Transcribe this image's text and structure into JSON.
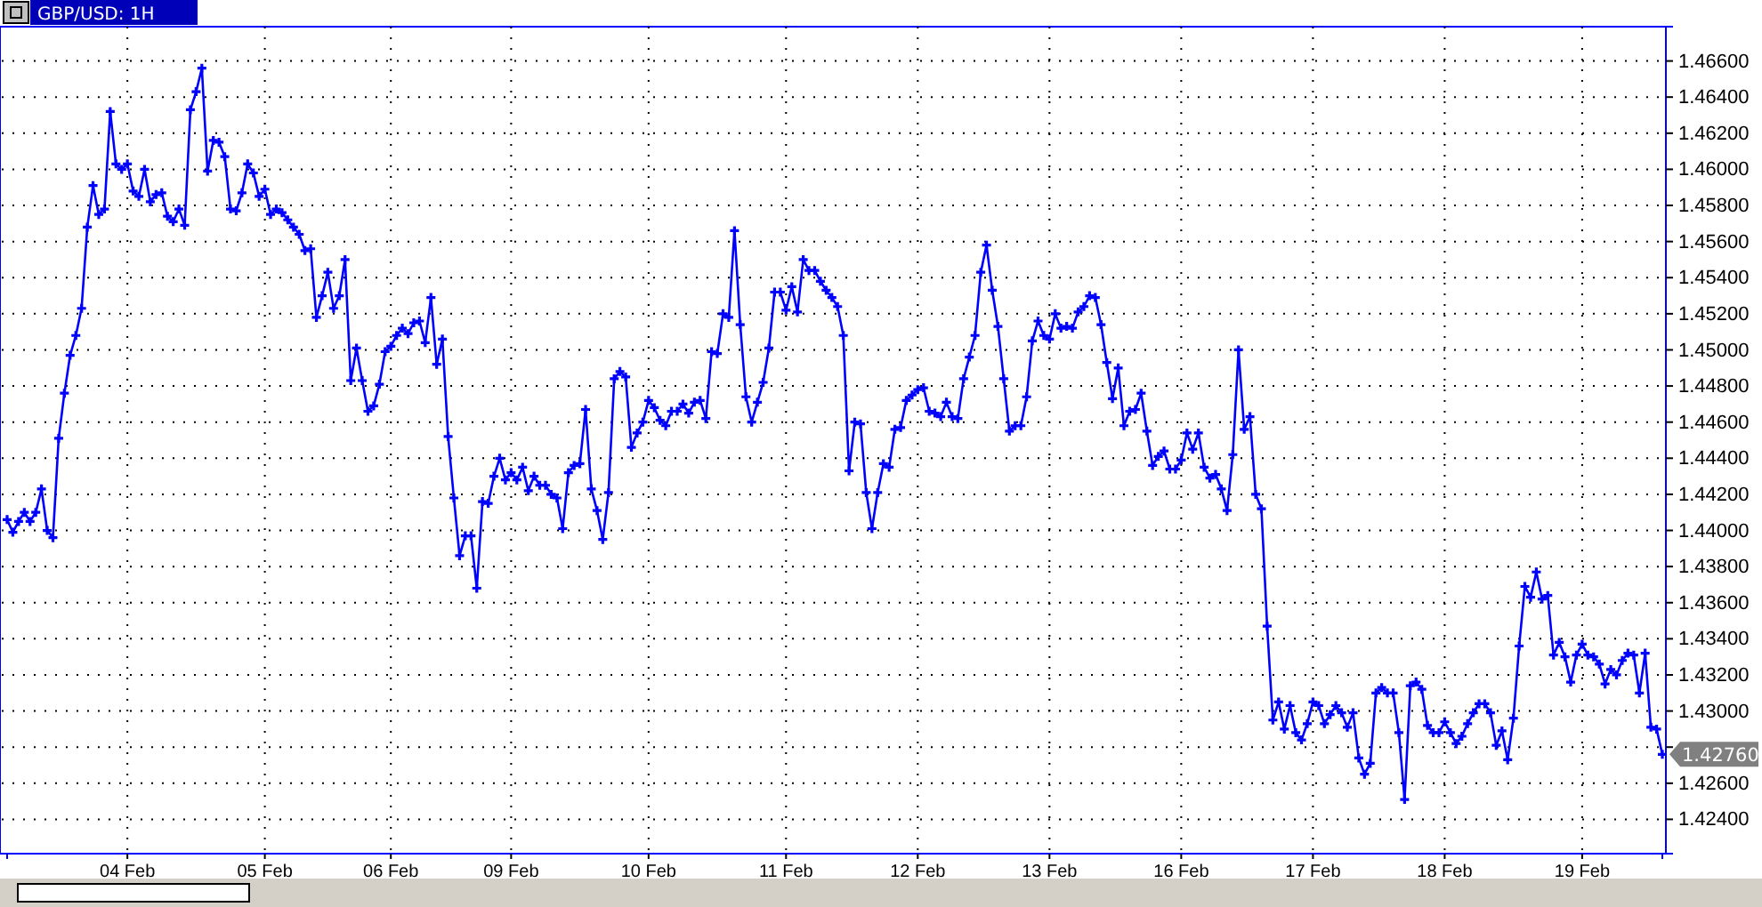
{
  "chart_data": {
    "type": "line",
    "title": "GBP/USD: 1H",
    "marker": "cross",
    "line_style": "solid",
    "grid": true,
    "ylim": [
      1.4221,
      1.4679
    ],
    "categories": [
      null,
      null,
      null,
      null,
      null,
      null,
      null,
      null,
      null,
      null,
      null,
      null,
      null,
      null,
      null,
      null,
      null,
      null,
      null,
      null,
      null,
      "04 Feb",
      null,
      null,
      null,
      null,
      null,
      null,
      null,
      null,
      null,
      null,
      null,
      null,
      null,
      null,
      null,
      null,
      null,
      null,
      null,
      null,
      null,
      null,
      null,
      "05 Feb",
      null,
      null,
      null,
      null,
      null,
      null,
      null,
      null,
      null,
      null,
      null,
      null,
      null,
      null,
      null,
      null,
      null,
      null,
      null,
      null,
      null,
      "06 Feb",
      null,
      null,
      null,
      null,
      null,
      null,
      null,
      null,
      null,
      null,
      null,
      null,
      null,
      null,
      null,
      null,
      null,
      null,
      null,
      null,
      "09 Feb",
      null,
      null,
      null,
      null,
      null,
      null,
      null,
      null,
      null,
      null,
      null,
      null,
      null,
      null,
      null,
      null,
      null,
      null,
      null,
      null,
      null,
      null,
      null,
      "10 Feb",
      null,
      null,
      null,
      null,
      null,
      null,
      null,
      null,
      null,
      null,
      null,
      null,
      null,
      null,
      null,
      null,
      null,
      null,
      null,
      null,
      null,
      null,
      null,
      "11 Feb",
      null,
      null,
      null,
      null,
      null,
      null,
      null,
      null,
      null,
      null,
      null,
      null,
      null,
      null,
      null,
      null,
      null,
      null,
      null,
      null,
      null,
      null,
      "12 Feb",
      null,
      null,
      null,
      null,
      null,
      null,
      null,
      null,
      null,
      null,
      null,
      null,
      null,
      null,
      null,
      null,
      null,
      null,
      null,
      null,
      null,
      null,
      "13 Feb",
      null,
      null,
      null,
      null,
      null,
      null,
      null,
      null,
      null,
      null,
      null,
      null,
      null,
      null,
      null,
      null,
      null,
      null,
      null,
      null,
      null,
      null,
      "16 Feb",
      null,
      null,
      null,
      null,
      null,
      null,
      null,
      null,
      null,
      null,
      null,
      null,
      null,
      null,
      null,
      null,
      null,
      null,
      null,
      null,
      null,
      null,
      "17 Feb",
      null,
      null,
      null,
      null,
      null,
      null,
      null,
      null,
      null,
      null,
      null,
      null,
      null,
      null,
      null,
      null,
      null,
      null,
      null,
      null,
      null,
      null,
      "18 Feb",
      null,
      null,
      null,
      null,
      null,
      null,
      null,
      null,
      null,
      null,
      null,
      null,
      null,
      null,
      null,
      null,
      null,
      null,
      null,
      null,
      null,
      null,
      null,
      "19 Feb",
      null,
      null,
      null,
      null,
      null,
      null,
      null,
      null,
      null,
      null,
      null,
      null,
      null,
      null
    ],
    "yticks": [
      {
        "value": 1.424,
        "label": "1.42400"
      },
      {
        "value": 1.426,
        "label": "1.42600"
      },
      {
        "value": 1.428,
        "label": null
      },
      {
        "value": 1.43,
        "label": "1.43000"
      },
      {
        "value": 1.432,
        "label": "1.43200"
      },
      {
        "value": 1.434,
        "label": "1.43400"
      },
      {
        "value": 1.436,
        "label": "1.43600"
      },
      {
        "value": 1.438,
        "label": "1.43800"
      },
      {
        "value": 1.44,
        "label": "1.44000"
      },
      {
        "value": 1.442,
        "label": "1.44200"
      },
      {
        "value": 1.444,
        "label": "1.44400"
      },
      {
        "value": 1.446,
        "label": "1.44600"
      },
      {
        "value": 1.448,
        "label": "1.44800"
      },
      {
        "value": 1.45,
        "label": "1.45000"
      },
      {
        "value": 1.452,
        "label": "1.45200"
      },
      {
        "value": 1.454,
        "label": "1.45400"
      },
      {
        "value": 1.456,
        "label": "1.45600"
      },
      {
        "value": 1.458,
        "label": "1.45800"
      },
      {
        "value": 1.46,
        "label": "1.46000"
      },
      {
        "value": 1.462,
        "label": "1.46200"
      },
      {
        "value": 1.464,
        "label": "1.46400"
      },
      {
        "value": 1.466,
        "label": "1.46600"
      }
    ],
    "annotations": [
      "1.42760"
    ],
    "series": [
      {
        "color": "#0000ff",
        "values": [
          1.4406,
          1.4399,
          1.4405,
          1.441,
          1.4405,
          1.441,
          1.4423,
          1.44,
          1.4396,
          1.4451,
          1.4476,
          1.4497,
          1.4508,
          1.4523,
          1.4568,
          1.4591,
          1.4575,
          1.4578,
          1.4632,
          1.4603,
          1.46,
          1.4603,
          1.4588,
          1.4585,
          1.46,
          1.4582,
          1.4586,
          1.4587,
          1.4574,
          1.4571,
          1.4578,
          1.4569,
          1.4633,
          1.4643,
          1.4656,
          1.4599,
          1.4616,
          1.4615,
          1.4607,
          1.4578,
          1.4577,
          1.4587,
          1.4603,
          1.4598,
          1.4585,
          1.4589,
          1.4575,
          1.4578,
          1.4576,
          1.4572,
          1.4568,
          1.4564,
          1.4555,
          1.4556,
          1.4518,
          1.453,
          1.4543,
          1.4523,
          1.453,
          1.455,
          1.4483,
          1.4501,
          1.4483,
          1.4466,
          1.4469,
          1.4481,
          1.4499,
          1.4502,
          1.4508,
          1.4512,
          1.4509,
          1.4515,
          1.4516,
          1.4504,
          1.4529,
          1.4492,
          1.4506,
          1.4452,
          1.4418,
          1.4386,
          1.4397,
          1.4397,
          1.4368,
          1.4416,
          1.4415,
          1.443,
          1.444,
          1.4428,
          1.4432,
          1.4428,
          1.4435,
          1.4422,
          1.443,
          1.4425,
          1.4425,
          1.442,
          1.4418,
          1.4401,
          1.4432,
          1.4436,
          1.4437,
          1.4467,
          1.4423,
          1.4411,
          1.4395,
          1.4421,
          1.4484,
          1.4488,
          1.4485,
          1.4446,
          1.4454,
          1.446,
          1.4472,
          1.4468,
          1.4461,
          1.4458,
          1.4466,
          1.4466,
          1.447,
          1.4465,
          1.4471,
          1.4472,
          1.4462,
          1.4499,
          1.4498,
          1.452,
          1.4518,
          1.4566,
          1.4514,
          1.4474,
          1.446,
          1.4471,
          1.4482,
          1.4501,
          1.4532,
          1.4532,
          1.4522,
          1.4535,
          1.4521,
          1.455,
          1.4544,
          1.4544,
          1.4538,
          1.4533,
          1.4529,
          1.4524,
          1.4508,
          1.4433,
          1.446,
          1.4459,
          1.4421,
          1.4401,
          1.4421,
          1.4437,
          1.4435,
          1.4456,
          1.4457,
          1.4472,
          1.4475,
          1.4478,
          1.4479,
          1.4466,
          1.4465,
          1.4463,
          1.4471,
          1.4463,
          1.4462,
          1.4484,
          1.4496,
          1.4508,
          1.4543,
          1.4558,
          1.4533,
          1.4513,
          1.4484,
          1.4455,
          1.4458,
          1.4458,
          1.4474,
          1.4505,
          1.4516,
          1.4508,
          1.4506,
          1.452,
          1.4512,
          1.4513,
          1.4512,
          1.4521,
          1.4524,
          1.453,
          1.4529,
          1.4514,
          1.4493,
          1.4473,
          1.449,
          1.4458,
          1.4466,
          1.4467,
          1.4476,
          1.4455,
          1.4436,
          1.4441,
          1.4444,
          1.4434,
          1.4434,
          1.4439,
          1.4454,
          1.4445,
          1.4454,
          1.4435,
          1.4429,
          1.4431,
          1.4423,
          1.4411,
          1.4442,
          1.45,
          1.4456,
          1.4463,
          1.442,
          1.4412,
          1.4347,
          1.4295,
          1.4305,
          1.429,
          1.4303,
          1.4288,
          1.4284,
          1.4293,
          1.4305,
          1.4303,
          1.4293,
          1.4298,
          1.4303,
          1.4299,
          1.4291,
          1.4299,
          1.4274,
          1.4265,
          1.4271,
          1.431,
          1.4313,
          1.431,
          1.431,
          1.4288,
          1.4251,
          1.4314,
          1.4316,
          1.4312,
          1.4292,
          1.4288,
          1.4288,
          1.4294,
          1.4288,
          1.4282,
          1.4286,
          1.4293,
          1.4299,
          1.4304,
          1.4304,
          1.4299,
          1.4281,
          1.4289,
          1.4273,
          1.4296,
          1.4336,
          1.4369,
          1.4363,
          1.4377,
          1.4362,
          1.4364,
          1.4331,
          1.4338,
          1.433,
          1.4316,
          1.4331,
          1.4337,
          1.4331,
          1.433,
          1.4326,
          1.4315,
          1.4323,
          1.432,
          1.4328,
          1.4332,
          1.4331,
          1.431,
          1.4332,
          1.4291,
          1.429,
          1.4276
        ]
      }
    ]
  }
}
